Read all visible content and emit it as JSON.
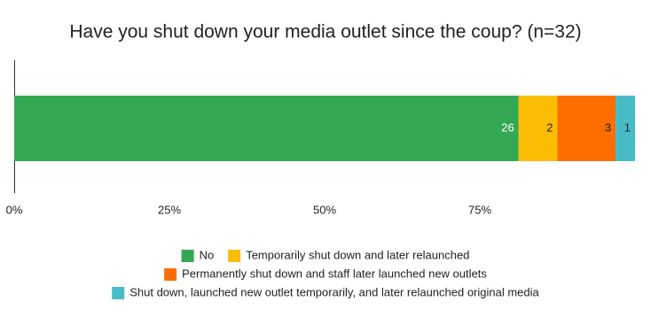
{
  "chart_data": {
    "type": "bar",
    "orientation": "horizontal",
    "stacked": "percent",
    "title": "Have you shut down your media outlet since the coup? (n=32)",
    "categories": [
      null
    ],
    "series": [
      {
        "name": "No",
        "color": "#34a853",
        "label_color": "#ffffff",
        "values": [
          26
        ]
      },
      {
        "name": "Temporarily shut down and later relaunched",
        "color": "#fbbc04",
        "label_color": "#222222",
        "values": [
          2
        ]
      },
      {
        "name": "Permanently shut down and staff later launched new outlets",
        "color": "#ff6d01",
        "label_color": "#222222",
        "values": [
          3
        ]
      },
      {
        "name": "Shut down, launched new outlet temporarily, and later relaunched original media",
        "color": "#46bdc6",
        "label_color": "#222222",
        "values": [
          1
        ]
      }
    ],
    "xlim": [
      0,
      100
    ],
    "xticks": [
      {
        "value": 0,
        "label": "0%"
      },
      {
        "value": 25,
        "label": "25%"
      },
      {
        "value": 50,
        "label": "50%"
      },
      {
        "value": 75,
        "label": "75%"
      }
    ],
    "grid": false,
    "legend": "bottom"
  }
}
